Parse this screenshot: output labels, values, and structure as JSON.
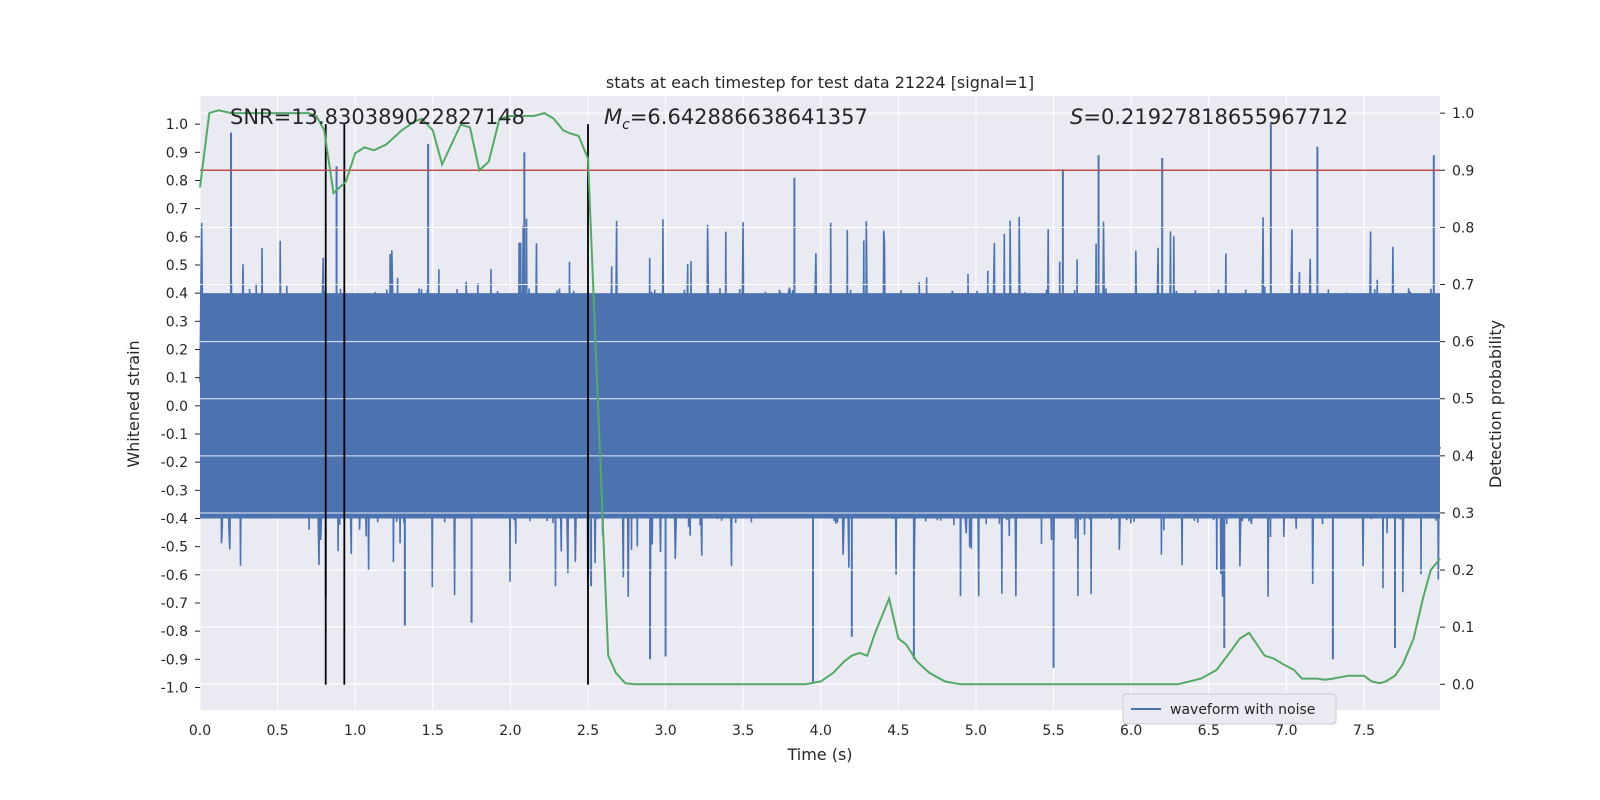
{
  "chart_data": {
    "type": "line",
    "title": "stats at each timestep for test data 21224 [signal=1]",
    "xlabel": "Time (s)",
    "ylabel": "Whitened strain",
    "ylabel_right": "Detection probability",
    "xlim": [
      0.0,
      7.99
    ],
    "ylim": [
      -1.08,
      1.1
    ],
    "ylim_right": [
      -0.045,
      1.03
    ],
    "x_ticks": [
      "0.0",
      "0.5",
      "1.0",
      "1.5",
      "2.0",
      "2.5",
      "3.0",
      "3.5",
      "4.0",
      "4.5",
      "5.0",
      "5.5",
      "6.0",
      "6.5",
      "7.0",
      "7.5"
    ],
    "y_ticks": [
      "1.0",
      "0.9",
      "0.8",
      "0.7",
      "0.6",
      "0.5",
      "0.4",
      "0.3",
      "0.2",
      "0.1",
      "0.0",
      "-0.1",
      "-0.2",
      "-0.3",
      "-0.4",
      "-0.5",
      "-0.6",
      "-0.7",
      "-0.8",
      "-0.9",
      "-1.0"
    ],
    "y_ticks_right": [
      "1.0",
      "0.9",
      "0.8",
      "0.7",
      "0.6",
      "0.5",
      "0.4",
      "0.3",
      "0.2",
      "0.1",
      "0.0"
    ],
    "grid": true,
    "legend_position": "lower-right",
    "annotations": {
      "snr": "SNR=13.830389022827148",
      "mc": "=6.642886638641357",
      "s": "=0.21927818655967712"
    },
    "threshold": {
      "value": 0.9,
      "axis": "right",
      "color": "#c44e52"
    },
    "event_lines": [
      0.81,
      0.93,
      2.5
    ],
    "event_lines_yrange": [
      -0.99,
      1.0
    ],
    "colors": {
      "strain": "#4c72b0",
      "probability": "#55a868",
      "event": "#000000",
      "background": "#eaeaf2"
    },
    "series": [
      {
        "name": "waveform with noise",
        "kind": "dense-noise",
        "axis": "left",
        "envelope_core": [
          -0.4,
          0.4
        ],
        "notable_peaks": [
          [
            0.2,
            0.97
          ],
          [
            0.88,
            0.85
          ],
          [
            1.47,
            0.93
          ],
          [
            2.09,
            0.9
          ],
          [
            3.83,
            0.81
          ],
          [
            5.56,
            0.84
          ],
          [
            5.79,
            0.89
          ],
          [
            6.2,
            0.88
          ],
          [
            6.9,
            1.0
          ],
          [
            7.2,
            0.92
          ],
          [
            7.95,
            0.89
          ]
        ],
        "notable_troughs": [
          [
            0.81,
            -0.68
          ],
          [
            1.32,
            -0.78
          ],
          [
            1.75,
            -0.77
          ],
          [
            2.52,
            -0.64
          ],
          [
            2.9,
            -0.9
          ],
          [
            3.0,
            -0.89
          ],
          [
            3.95,
            -0.98
          ],
          [
            4.2,
            -0.82
          ],
          [
            4.6,
            -0.9
          ],
          [
            5.5,
            -0.93
          ],
          [
            6.6,
            -0.86
          ],
          [
            7.3,
            -0.9
          ],
          [
            7.7,
            -0.86
          ]
        ]
      },
      {
        "name": "detection probability",
        "kind": "line",
        "axis": "right",
        "x": [
          0.0,
          0.06,
          0.12,
          0.2,
          0.3,
          0.4,
          0.5,
          0.6,
          0.65,
          0.7,
          0.75,
          0.8,
          0.86,
          0.9,
          0.94,
          1.0,
          1.06,
          1.12,
          1.2,
          1.3,
          1.38,
          1.43,
          1.5,
          1.56,
          1.62,
          1.68,
          1.74,
          1.8,
          1.86,
          1.93,
          2.0,
          2.08,
          2.15,
          2.22,
          2.28,
          2.34,
          2.38,
          2.44,
          2.5,
          2.56,
          2.63,
          2.68,
          2.74,
          2.8,
          3.0,
          3.2,
          3.4,
          3.6,
          3.8,
          3.9,
          4.0,
          4.08,
          4.15,
          4.2,
          4.25,
          4.3,
          4.35,
          4.44,
          4.5,
          4.55,
          4.62,
          4.7,
          4.8,
          4.9,
          5.1,
          5.3,
          5.5,
          5.7,
          5.9,
          6.1,
          6.3,
          6.45,
          6.55,
          6.62,
          6.7,
          6.76,
          6.81,
          6.86,
          6.92,
          6.98,
          7.05,
          7.1,
          7.15,
          7.2,
          7.25,
          7.3,
          7.4,
          7.5,
          7.55,
          7.6,
          7.64,
          7.7,
          7.75,
          7.82,
          7.88,
          7.93,
          7.99
        ],
        "values": [
          0.87,
          1.0,
          1.005,
          1.0,
          1.0,
          1.0,
          1.0,
          1.0,
          1.0,
          1.0,
          0.995,
          0.97,
          0.86,
          0.87,
          0.88,
          0.93,
          0.94,
          0.935,
          0.945,
          0.97,
          0.985,
          0.99,
          0.97,
          0.91,
          0.945,
          0.98,
          0.975,
          0.9,
          0.915,
          0.99,
          0.995,
          0.995,
          0.995,
          1.0,
          0.99,
          0.97,
          0.965,
          0.96,
          0.92,
          0.52,
          0.05,
          0.02,
          0.002,
          0.0,
          0.0,
          0.0,
          0.0,
          0.0,
          0.0,
          0.0,
          0.005,
          0.02,
          0.04,
          0.05,
          0.055,
          0.05,
          0.09,
          0.15,
          0.08,
          0.07,
          0.04,
          0.02,
          0.005,
          0.0,
          0.0,
          0.0,
          0.0,
          0.0,
          0.0,
          0.0,
          0.0,
          0.01,
          0.025,
          0.05,
          0.08,
          0.09,
          0.07,
          0.05,
          0.045,
          0.035,
          0.025,
          0.01,
          0.01,
          0.01,
          0.008,
          0.01,
          0.015,
          0.015,
          0.005,
          0.002,
          0.005,
          0.015,
          0.035,
          0.08,
          0.15,
          0.2,
          0.22
        ]
      }
    ]
  }
}
